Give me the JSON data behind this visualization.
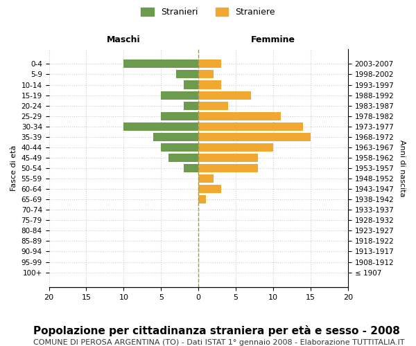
{
  "age_groups": [
    "100+",
    "95-99",
    "90-94",
    "85-89",
    "80-84",
    "75-79",
    "70-74",
    "65-69",
    "60-64",
    "55-59",
    "50-54",
    "45-49",
    "40-44",
    "35-39",
    "30-34",
    "25-29",
    "20-24",
    "15-19",
    "10-14",
    "5-9",
    "0-4"
  ],
  "birth_years": [
    "≤ 1907",
    "1908-1912",
    "1913-1917",
    "1918-1922",
    "1923-1927",
    "1928-1932",
    "1933-1937",
    "1938-1942",
    "1943-1947",
    "1948-1952",
    "1953-1957",
    "1958-1962",
    "1963-1967",
    "1968-1972",
    "1973-1977",
    "1978-1982",
    "1983-1987",
    "1988-1992",
    "1993-1997",
    "1998-2002",
    "2003-2007"
  ],
  "maschi": [
    0,
    0,
    0,
    0,
    0,
    0,
    0,
    0,
    0,
    0,
    2,
    4,
    5,
    6,
    10,
    5,
    2,
    5,
    2,
    3,
    10
  ],
  "femmine": [
    0,
    0,
    0,
    0,
    0,
    0,
    0,
    1,
    3,
    2,
    8,
    8,
    10,
    15,
    14,
    11,
    4,
    7,
    3,
    2,
    3
  ],
  "maschi_color": "#6d9b4e",
  "femmine_color": "#f0a830",
  "bar_height": 0.8,
  "xlim": 20,
  "title": "Popolazione per cittadinanza straniera per età e sesso - 2008",
  "subtitle": "COMUNE DI PEROSA ARGENTINA (TO) - Dati ISTAT 1° gennaio 2008 - Elaborazione TUTTITALIA.IT",
  "xlabel_left": "Maschi",
  "xlabel_right": "Femmine",
  "ylabel_left": "Fasce di età",
  "ylabel_right": "Anni di nascita",
  "legend_stranieri": "Stranieri",
  "legend_straniere": "Straniere",
  "background_color": "#ffffff",
  "grid_color": "#cccccc",
  "title_fontsize": 11,
  "subtitle_fontsize": 8
}
